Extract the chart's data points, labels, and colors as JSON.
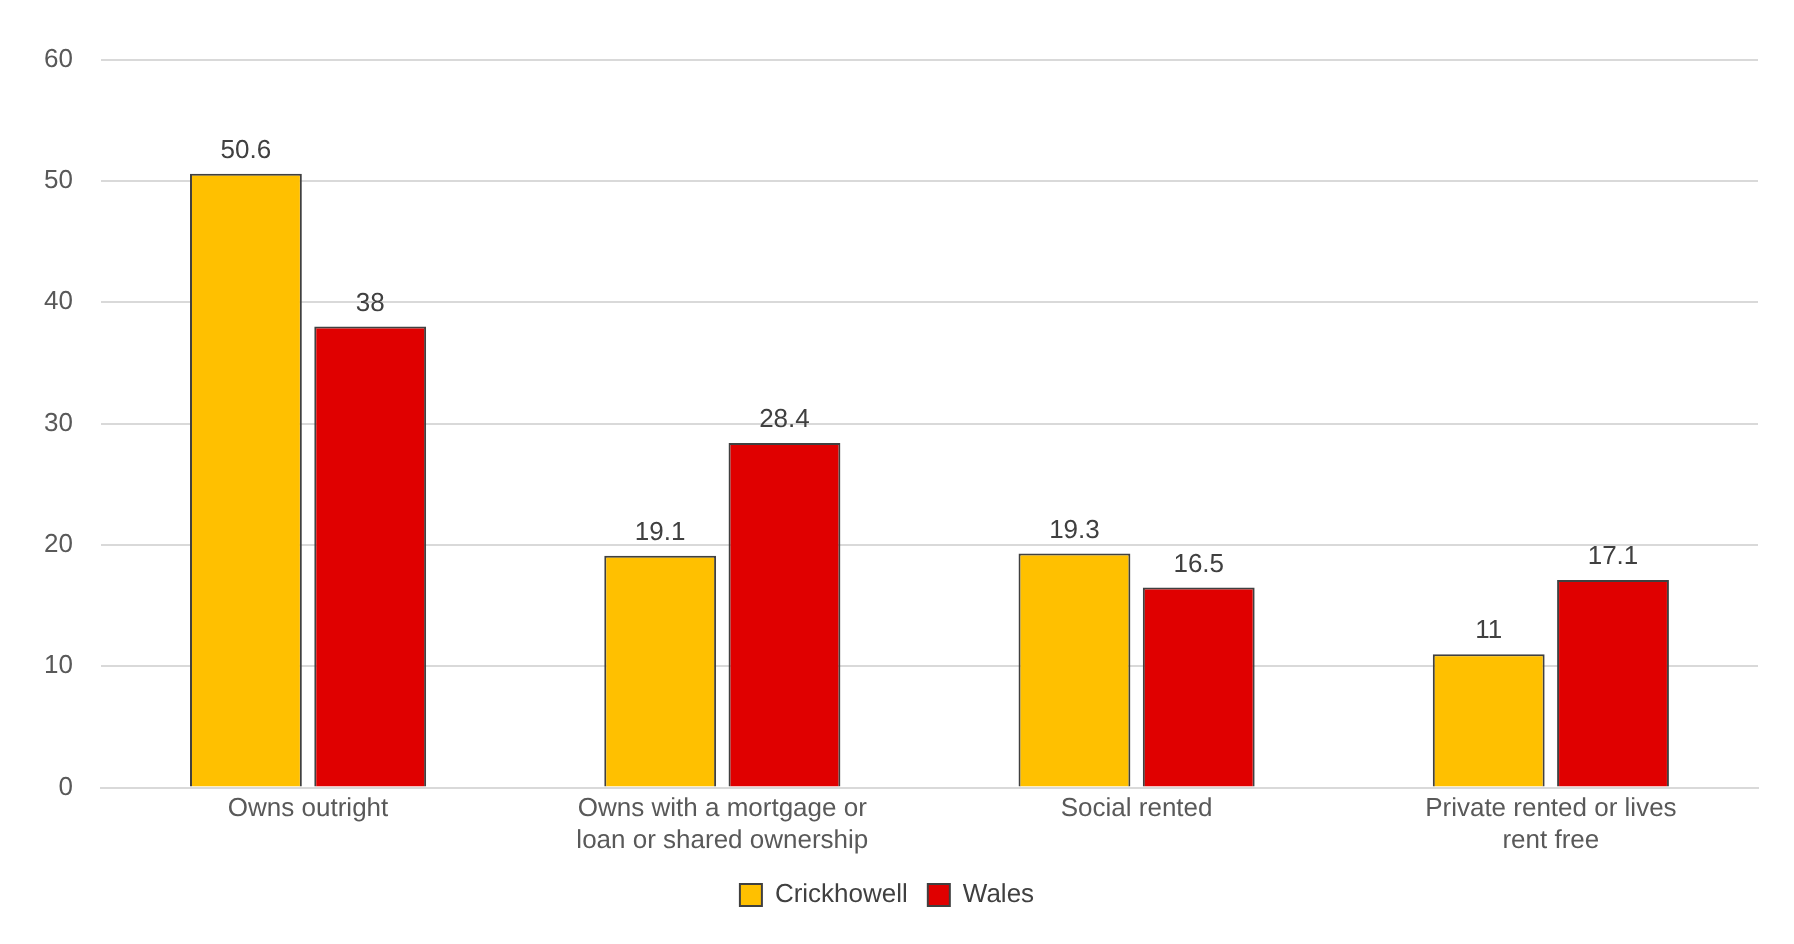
{
  "chart_data": {
    "type": "bar",
    "categories": [
      "Owns outright",
      "Owns with a mortgage or loan or shared ownership",
      "Social rented",
      "Private rented or lives rent free"
    ],
    "series": [
      {
        "name": "Crickhowell",
        "color": "#ffc000",
        "values": [
          50.6,
          19.1,
          19.3,
          11
        ]
      },
      {
        "name": "Wales",
        "color": "#e00000",
        "values": [
          38,
          28.4,
          16.5,
          17.1
        ]
      }
    ],
    "ylim": [
      0,
      60
    ],
    "yticks": [
      0,
      10,
      20,
      30,
      40,
      50,
      60
    ],
    "grid": "y",
    "legend": "bottom",
    "data_labels": true
  }
}
